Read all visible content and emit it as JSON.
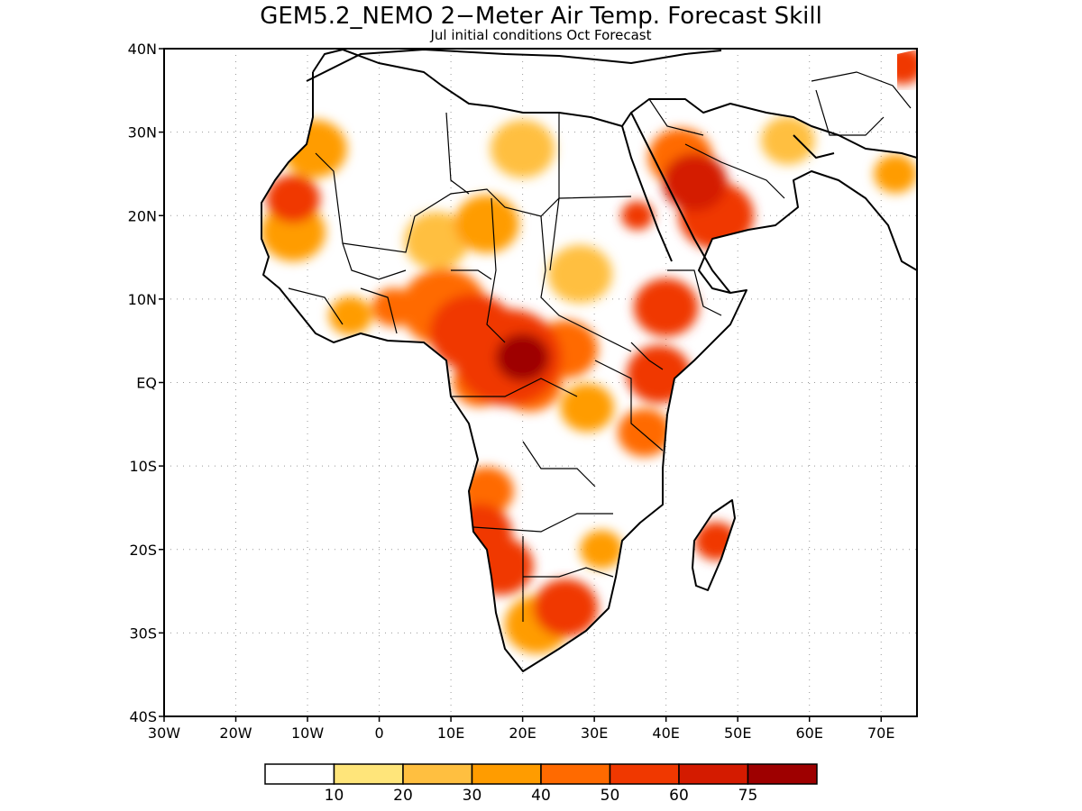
{
  "title": "GEM5.2_NEMO 2−Meter Air Temp. Forecast Skill",
  "subtitle": "Jul initial conditions  Oct Forecast",
  "lat_labels": [
    "40N",
    "30N",
    "20N",
    "10N",
    "EQ",
    "10S",
    "20S",
    "30S",
    "40S"
  ],
  "lat_values": [
    40,
    30,
    20,
    10,
    0,
    -10,
    -20,
    -30,
    -40
  ],
  "lon_labels": [
    "30W",
    "20W",
    "10W",
    "0",
    "10E",
    "20E",
    "30E",
    "40E",
    "50E",
    "60E",
    "70E"
  ],
  "lon_values": [
    -30,
    -20,
    -10,
    0,
    10,
    20,
    30,
    40,
    50,
    60,
    70
  ],
  "extent": {
    "lon_min": -30,
    "lon_max": 75,
    "lat_min": -40,
    "lat_max": 40
  },
  "colorbar": {
    "labels": [
      "10",
      "20",
      "30",
      "40",
      "50",
      "60",
      "75"
    ],
    "colors": [
      "#ffffff",
      "#ffe57a",
      "#ffbf40",
      "#ff9c00",
      "#ff6a00",
      "#f03800",
      "#d41b00",
      "#9e0000"
    ]
  },
  "skill_blobs": [
    {
      "lon": 20,
      "lat": 3,
      "level": 7,
      "r": 2.5
    },
    {
      "lon": 18,
      "lat": 3,
      "level": 5,
      "r": 5
    },
    {
      "lon": 13,
      "lat": 6,
      "level": 5,
      "r": 4
    },
    {
      "lon": 9,
      "lat": 9,
      "level": 4,
      "r": 4
    },
    {
      "lon": 26,
      "lat": 4,
      "level": 4,
      "r": 3
    },
    {
      "lon": 21,
      "lat": 0,
      "level": 4,
      "r": 3
    },
    {
      "lon": 14,
      "lat": 0,
      "level": 4,
      "r": 2.5
    },
    {
      "lon": 40,
      "lat": 9,
      "level": 5,
      "r": 3
    },
    {
      "lon": 39,
      "lat": 1,
      "level": 5,
      "r": 3
    },
    {
      "lon": 37,
      "lat": -6,
      "level": 4,
      "r": 2.5
    },
    {
      "lon": 44,
      "lat": 24,
      "level": 6,
      "r": 3
    },
    {
      "lon": 47,
      "lat": 20,
      "level": 5,
      "r": 3.5
    },
    {
      "lon": 42,
      "lat": 27,
      "level": 4,
      "r": 3
    },
    {
      "lon": 36,
      "lat": 20,
      "level": 5,
      "r": 1.5
    },
    {
      "lon": -12,
      "lat": 22,
      "level": 5,
      "r": 2.5
    },
    {
      "lon": -9,
      "lat": 28,
      "level": 3,
      "r": 3
    },
    {
      "lon": -12,
      "lat": 18,
      "level": 3,
      "r": 3
    },
    {
      "lon": 14,
      "lat": -18,
      "level": 5,
      "r": 3
    },
    {
      "lon": 17,
      "lat": -22,
      "level": 5,
      "r": 3
    },
    {
      "lon": 15,
      "lat": -13,
      "level": 4,
      "r": 2.5
    },
    {
      "lon": 26,
      "lat": -27,
      "level": 5,
      "r": 3
    },
    {
      "lon": 22,
      "lat": -29,
      "level": 3,
      "r": 3
    },
    {
      "lon": 47,
      "lat": -19,
      "level": 5,
      "r": 2
    },
    {
      "lon": 2,
      "lat": 9,
      "level": 4,
      "r": 2
    },
    {
      "lon": -4,
      "lat": 8,
      "level": 3,
      "r": 2
    },
    {
      "lon": 15,
      "lat": 19,
      "level": 3,
      "r": 3
    },
    {
      "lon": 8,
      "lat": 17,
      "level": 2,
      "r": 3
    },
    {
      "lon": 20,
      "lat": 28,
      "level": 2,
      "r": 3
    },
    {
      "lon": 57,
      "lat": 29,
      "level": 2,
      "r": 2.5
    },
    {
      "lon": 73,
      "lat": 38,
      "level": 5,
      "r": 2
    },
    {
      "lon": 72,
      "lat": 25,
      "level": 3,
      "r": 2
    },
    {
      "lon": 28,
      "lat": 13,
      "level": 2,
      "r": 3
    },
    {
      "lon": 29,
      "lat": -3,
      "level": 3,
      "r": 2.5
    },
    {
      "lon": 31,
      "lat": -20,
      "level": 3,
      "r": 2
    }
  ]
}
